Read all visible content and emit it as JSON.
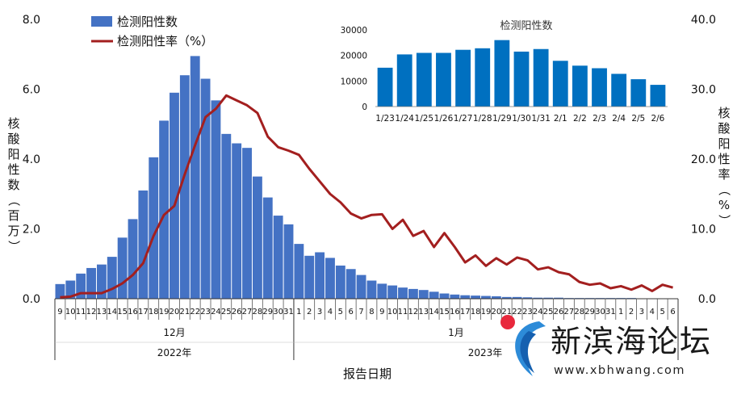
{
  "chart_data": [
    {
      "type": "bar+line",
      "categories": [
        "9",
        "10",
        "11",
        "12",
        "13",
        "14",
        "15",
        "16",
        "17",
        "18",
        "19",
        "20",
        "21",
        "22",
        "23",
        "24",
        "25",
        "26",
        "27",
        "28",
        "29",
        "30",
        "31",
        "1",
        "2",
        "3",
        "4",
        "5",
        "6",
        "7",
        "8",
        "9",
        "10",
        "11",
        "12",
        "13",
        "14",
        "15",
        "16",
        "17",
        "18",
        "19",
        "20",
        "21",
        "22",
        "23",
        "24",
        "25",
        "26",
        "27",
        "28",
        "29",
        "30",
        "31",
        "1",
        "2",
        "3",
        "4",
        "5",
        "6"
      ],
      "month_labels": [
        "12月",
        "1月"
      ],
      "year_labels": [
        "2022年",
        "2023年"
      ],
      "xlabel": "报告日期",
      "y_left_label": "核酸阳性数（百万）",
      "y_right_label": "核酸阳性率（%）",
      "y_left_ticks": [
        "0.0",
        "2.0",
        "4.0",
        "6.0",
        "8.0"
      ],
      "y_right_ticks": [
        "0.0",
        "10.0",
        "20.0",
        "30.0",
        "40.0"
      ],
      "ylim_left": [
        0,
        8
      ],
      "ylim_right": [
        0,
        40
      ],
      "legend_position": "top-left",
      "series": [
        {
          "name": "检测阳性数",
          "kind": "bar",
          "axis": "left",
          "color": "#4472C4",
          "values": [
            0.42,
            0.52,
            0.72,
            0.88,
            0.98,
            1.2,
            1.75,
            2.28,
            3.1,
            4.05,
            5.1,
            5.9,
            6.4,
            6.95,
            6.3,
            5.68,
            4.72,
            4.45,
            4.32,
            3.5,
            2.9,
            2.38,
            2.13,
            1.57,
            1.23,
            1.33,
            1.17,
            0.95,
            0.85,
            0.68,
            0.52,
            0.43,
            0.38,
            0.32,
            0.28,
            0.25,
            0.2,
            0.15,
            0.12,
            0.1,
            0.09,
            0.08,
            0.07,
            0.05,
            0.05,
            0.04,
            0.03,
            0.03,
            0.03,
            0.02,
            0.02,
            0.02,
            0.02,
            0.02,
            0.02,
            0.02,
            0.01,
            0.01,
            0.01,
            0.01
          ]
        },
        {
          "name": "检测阳性率（%）",
          "kind": "line",
          "axis": "right",
          "color": "#A31F1F",
          "values": [
            0.2,
            0.3,
            0.8,
            0.8,
            0.8,
            1.4,
            2.2,
            3.4,
            5.1,
            9,
            12,
            13.3,
            17.8,
            22,
            26,
            27.2,
            29.1,
            28.4,
            27.7,
            26.6,
            23.2,
            21.7,
            21.2,
            20.6,
            18.6,
            16.8,
            15,
            13.8,
            12.2,
            11.5,
            12,
            12.1,
            10,
            11.3,
            9,
            9.7,
            7.4,
            9.4,
            7.4,
            5.2,
            6.2,
            4.7,
            5.8,
            4.9,
            5.9,
            5.5,
            4.2,
            4.5,
            3.8,
            3.5,
            2.4,
            2,
            2.2,
            1.5,
            1.8,
            1.3,
            1.9,
            1.1,
            2,
            1.6
          ]
        }
      ]
    },
    {
      "type": "bar",
      "title": "检测阳性数",
      "categories": [
        "1/23",
        "1/24",
        "1/25",
        "1/26",
        "1/27",
        "1/28",
        "1/29",
        "1/30",
        "1/31",
        "2/1",
        "2/2",
        "2/3",
        "2/4",
        "2/5",
        "2/6"
      ],
      "values": [
        15200,
        20400,
        21000,
        21000,
        22200,
        22800,
        26000,
        21500,
        22500,
        17900,
        16000,
        15000,
        12800,
        10700,
        8500
      ],
      "y_ticks": [
        "0",
        "10000",
        "20000",
        "30000"
      ],
      "ylim": [
        0,
        30000
      ],
      "color": "#0070C0"
    }
  ],
  "watermark": {
    "title": "新滨海论坛",
    "url": "www.xbhwang.com"
  },
  "colors": {
    "bar_main": "#4472C4",
    "line_rate": "#A31F1F",
    "bar_inset": "#0070C0",
    "axis": "#333333"
  }
}
